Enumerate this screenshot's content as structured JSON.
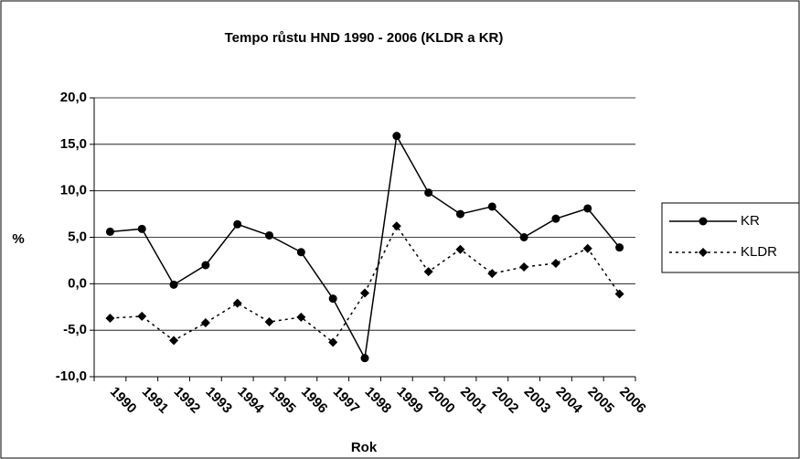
{
  "chart_data": {
    "type": "line",
    "title": "Tempo růstu HND 1990 - 2006 (KLDR a KR)",
    "xlabel": "Rok",
    "ylabel": "%",
    "categories": [
      "1990",
      "1991",
      "1992",
      "1993",
      "1994",
      "1995",
      "1996",
      "1997",
      "1998",
      "1999",
      "2000",
      "2001",
      "2002",
      "2003",
      "2004",
      "2005",
      "2006"
    ],
    "series": [
      {
        "name": "KR",
        "color": "#000000",
        "dash": "solid",
        "marker": "circle",
        "values": [
          5.6,
          5.9,
          -0.1,
          2.0,
          6.4,
          5.2,
          3.4,
          -1.6,
          -8.0,
          15.9,
          9.8,
          7.5,
          8.3,
          5.0,
          7.0,
          8.1,
          3.9
        ]
      },
      {
        "name": "KLDR",
        "color": "#000000",
        "dash": "dotted",
        "marker": "diamond",
        "values": [
          -3.7,
          -3.5,
          -6.1,
          -4.2,
          -2.1,
          -4.1,
          -3.6,
          -6.3,
          -1.0,
          6.2,
          1.3,
          3.7,
          1.1,
          1.8,
          2.2,
          3.8,
          -1.1
        ]
      }
    ],
    "ylim": [
      -10,
      20
    ],
    "yticks": [
      {
        "value": -10,
        "label": "-10,0"
      },
      {
        "value": -5,
        "label": "-5,0"
      },
      {
        "value": 0,
        "label": "0,0"
      },
      {
        "value": 5,
        "label": "5,0"
      },
      {
        "value": 10,
        "label": "10,0"
      },
      {
        "value": 15,
        "label": "15,0"
      },
      {
        "value": 20,
        "label": "20,0"
      }
    ],
    "grid": true,
    "legend": "right"
  }
}
